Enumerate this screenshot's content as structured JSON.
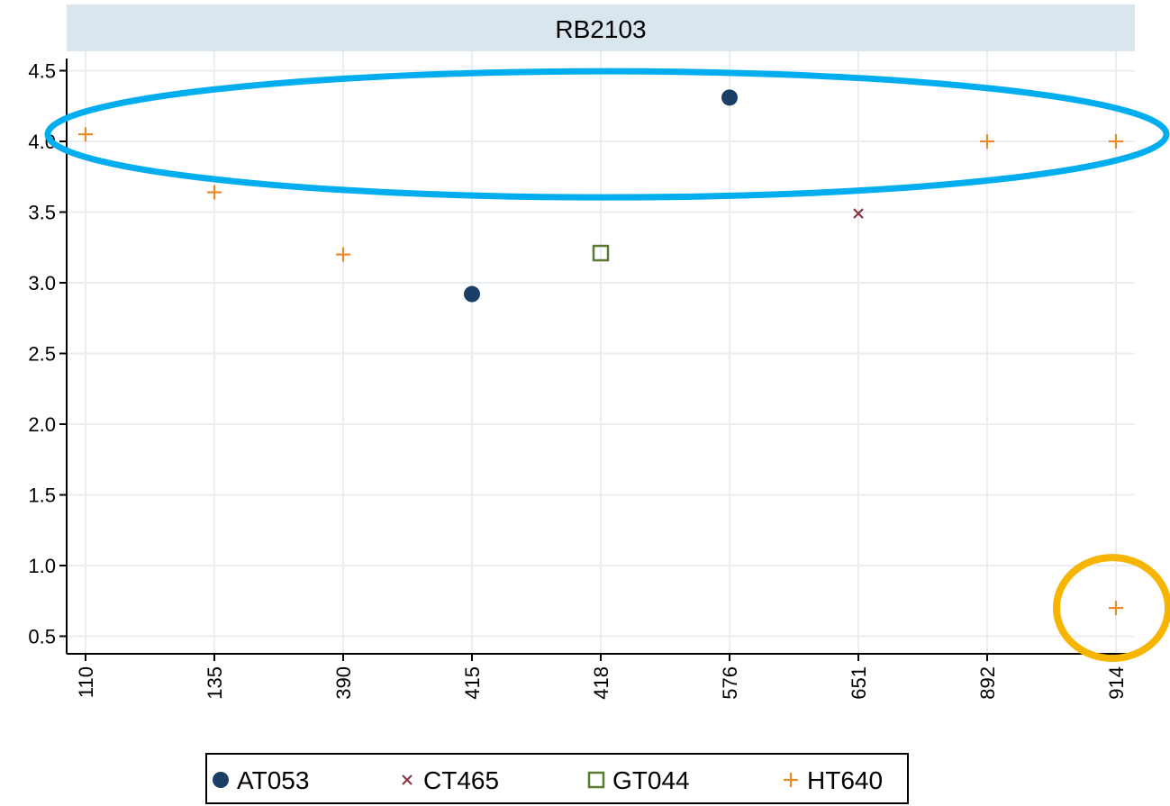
{
  "chart_data": {
    "type": "scatter",
    "title": "RB2103",
    "xlabel": "",
    "ylabel": "",
    "categories": [
      "110",
      "135",
      "390",
      "415",
      "418",
      "576",
      "651",
      "892",
      "914"
    ],
    "ylim": [
      0.35,
      4.65
    ],
    "yticks": [
      0.5,
      1.0,
      1.5,
      2.0,
      2.5,
      3.0,
      3.5,
      4.0,
      4.5
    ],
    "ytick_labels": [
      "0.5",
      "1.0",
      "1.5",
      "2.0",
      "2.5",
      "3.0",
      "3.5",
      "4.0",
      "4.5"
    ],
    "grid": true,
    "legend_position": "bottom",
    "series": [
      {
        "name": "AT053",
        "marker": "filled-circle",
        "color": "#1a3e66",
        "points": [
          {
            "x": "415",
            "y": 2.92
          },
          {
            "x": "576",
            "y": 4.31
          }
        ]
      },
      {
        "name": "CT465",
        "marker": "x",
        "color": "#8b3a46",
        "points": [
          {
            "x": "651",
            "y": 3.49
          }
        ]
      },
      {
        "name": "GT044",
        "marker": "hollow-square",
        "color": "#5a7a32",
        "points": [
          {
            "x": "418",
            "y": 3.21
          }
        ]
      },
      {
        "name": "HT640",
        "marker": "plus",
        "color": "#e8892a",
        "points": [
          {
            "x": "110",
            "y": 4.05
          },
          {
            "x": "135",
            "y": 3.64
          },
          {
            "x": "390",
            "y": 3.2
          },
          {
            "x": "892",
            "y": 4.0
          },
          {
            "x": "914",
            "y": 4.0
          },
          {
            "x": "914",
            "y": 0.7
          }
        ]
      }
    ],
    "annotations": [
      {
        "shape": "ellipse",
        "color": "#00aeef",
        "cx_category": "576",
        "cy": 4.05
      },
      {
        "shape": "circle",
        "color": "#f7b500",
        "cx_category": "914",
        "cy": 0.7
      }
    ]
  }
}
